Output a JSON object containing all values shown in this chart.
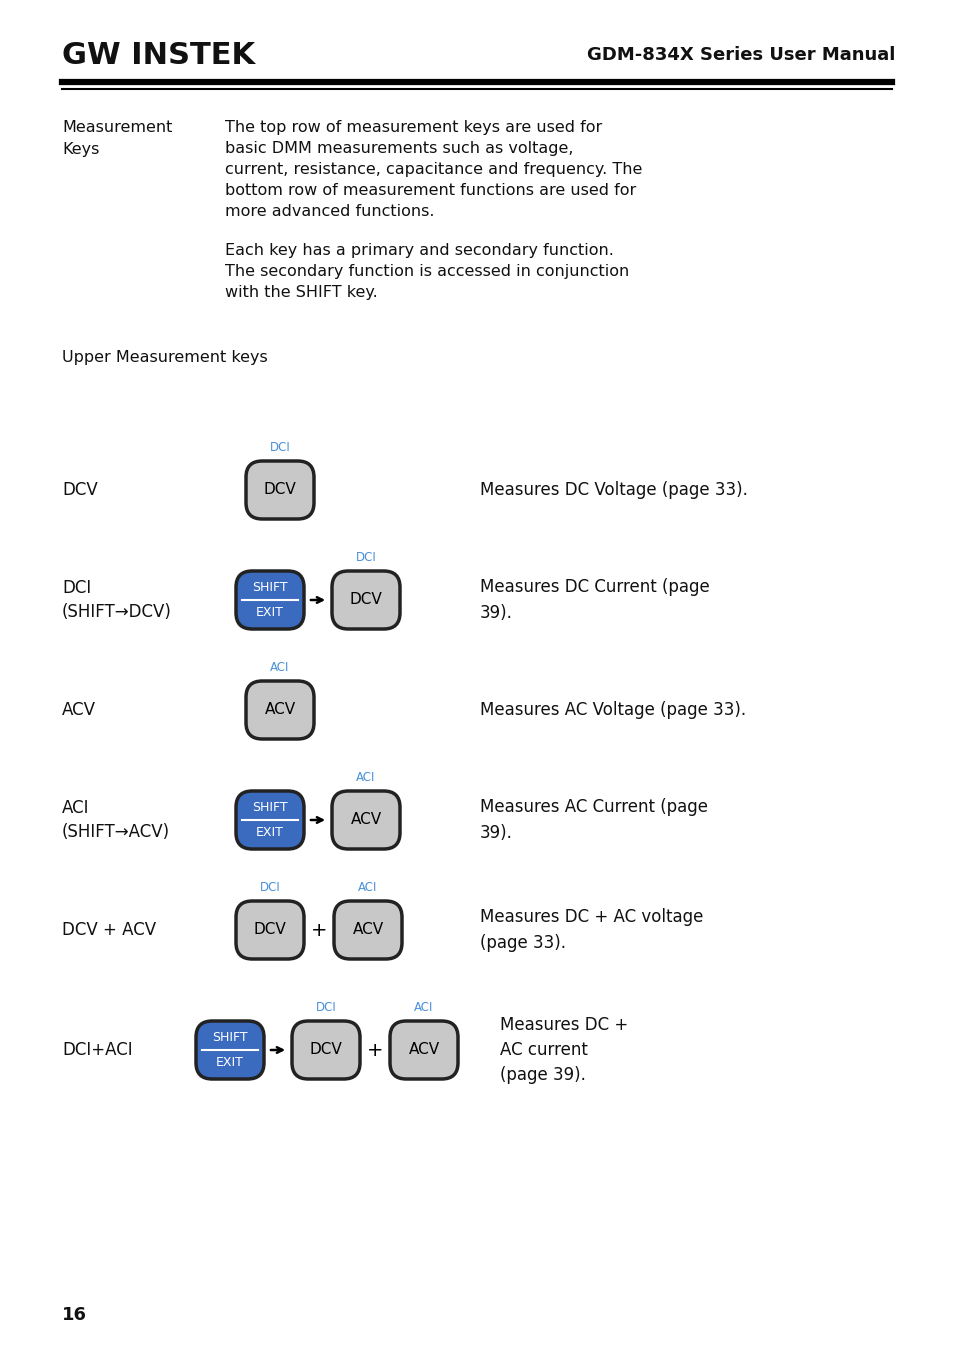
{
  "title_left": "GW INSTEK",
  "title_right": "GDM-834X Series User Manual",
  "body_label": "Measurement\nKeys",
  "body_text_line1": "The top row of measurement keys are used for",
  "body_text_line2": "basic DMM measurements such as voltage,",
  "body_text_line3": "current, resistance, capacitance and frequency. The",
  "body_text_line4": "bottom row of measurement functions are used for",
  "body_text_line5": "more advanced functions.",
  "body_text_line6": "",
  "body_text_line7": "Each key has a primary and secondary function.",
  "body_text_line8": "The secondary function is accessed in conjunction",
  "body_text_line9": "with the SHIFT key.",
  "section_title": "Upper Measurement keys",
  "rows": [
    {
      "label": "DCV",
      "label2": "",
      "description": "Measures DC Voltage (page 33).",
      "type": "single",
      "button_main": "DCV",
      "button_main_color": "#c8c8c8",
      "button_top_label": "DCI",
      "button_top_color": "#4a90d9"
    },
    {
      "label": "DCI",
      "label2": "(SHIFT→DCV)",
      "description": "Measures DC Current (page\n39).",
      "type": "shift",
      "shift_label1": "SHIFT",
      "shift_label2": "EXIT",
      "button_main": "DCV",
      "button_main_color": "#c8c8c8",
      "button_top_label": "DCI",
      "button_top_color": "#4a90d9",
      "shift_color": "#3a6bbf"
    },
    {
      "label": "ACV",
      "label2": "",
      "description": "Measures AC Voltage (page 33).",
      "type": "single",
      "button_main": "ACV",
      "button_main_color": "#c8c8c8",
      "button_top_label": "ACI",
      "button_top_color": "#4a90d9"
    },
    {
      "label": "ACI",
      "label2": "(SHIFT→ACV)",
      "description": "Measures AC Current (page\n39).",
      "type": "shift",
      "shift_label1": "SHIFT",
      "shift_label2": "EXIT",
      "button_main": "ACV",
      "button_main_color": "#c8c8c8",
      "button_top_label": "ACI",
      "button_top_color": "#4a90d9",
      "shift_color": "#3a6bbf"
    },
    {
      "label": "DCV + ACV",
      "label2": "",
      "description": "Measures DC + AC voltage\n(page 33).",
      "type": "double",
      "button1_main": "DCV",
      "button1_top_label": "DCI",
      "button2_main": "ACV",
      "button2_top_label": "ACI",
      "button_main_color": "#c8c8c8",
      "button_top_color": "#4a90d9"
    },
    {
      "label": "DCI+ACI",
      "label2": "",
      "description": "Measures DC +\nAC current\n(page 39).",
      "type": "shift_double",
      "shift_label1": "SHIFT",
      "shift_label2": "EXIT",
      "button1_main": "DCV",
      "button1_top_label": "DCI",
      "button2_main": "ACV",
      "button2_top_label": "ACI",
      "button_main_color": "#c8c8c8",
      "button_top_color": "#4a90d9",
      "shift_color": "#3a6bbf"
    }
  ],
  "page_number": "16",
  "bg_color": "#ffffff",
  "text_color": "#111111",
  "blue_color": "#4a90d9",
  "shift_bg_color": "#3a6bbf",
  "btn_gray": "#c8c8c8",
  "border_dark": "#222222"
}
